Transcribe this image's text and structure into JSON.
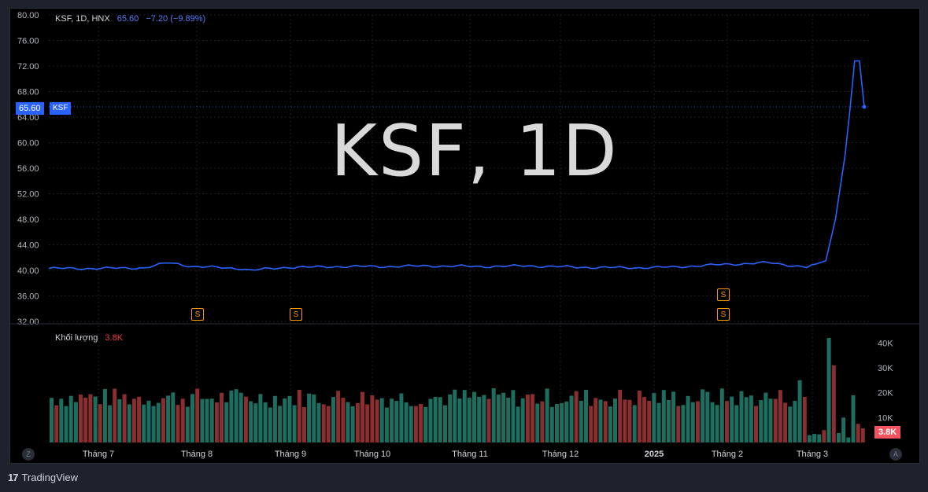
{
  "legend": {
    "symbol": "KSF, 1D, HNX",
    "last": "65.60",
    "change": "−7.20 (−9.89%)"
  },
  "volume_legend": {
    "label": "Khối lượng",
    "value": "3.8K"
  },
  "watermark": "KSF, 1D",
  "price_tag": {
    "value": "65.60",
    "ticker": "KSF"
  },
  "volume_tag": "3.8K",
  "markers": [
    "S",
    "S",
    "S",
    "S"
  ],
  "buttons": {
    "left": "Z",
    "right": "A"
  },
  "brand": {
    "logo": "17",
    "name": "TradingView"
  },
  "colors": {
    "line": "#2962ff",
    "up": "#26a69a",
    "down": "#ef5350",
    "up_dim": "#1e6e5f",
    "down_dim": "#8b2e30"
  },
  "chart_data": {
    "type": "line",
    "series": [
      {
        "name": "KSF",
        "type": "line",
        "x_index": [
          0,
          10,
          20,
          25,
          27,
          30,
          40,
          42,
          50,
          55,
          60,
          70,
          80,
          90,
          100,
          110,
          120,
          130,
          140,
          150,
          158,
          162,
          164,
          166,
          167,
          168,
          169,
          170
        ],
        "values": [
          40.3,
          40.3,
          40.4,
          41.2,
          41.0,
          40.6,
          40.3,
          40.0,
          40.5,
          40.5,
          40.6,
          40.6,
          40.7,
          40.6,
          40.7,
          40.5,
          40.4,
          40.5,
          40.9,
          41.2,
          40.5,
          41.5,
          48.0,
          58.0,
          65.0,
          72.8,
          72.8,
          65.6
        ]
      }
    ],
    "y_axis": {
      "ticks": [
        "80.00",
        "76.00",
        "72.00",
        "68.00",
        "64.00",
        "60.00",
        "56.00",
        "52.00",
        "48.00",
        "44.00",
        "40.00",
        "36.00",
        "32.00"
      ],
      "ylim": [
        32,
        80
      ]
    },
    "x_axis": {
      "ticks": [
        "Tháng 7",
        "Tháng 8",
        "Tháng 9",
        "Tháng 10",
        "Tháng 11",
        "Tháng 12",
        "2025",
        "Tháng 2",
        "Tháng 3"
      ]
    },
    "volume": {
      "ticks": [
        "40K",
        "30K",
        "20K",
        "10K"
      ],
      "ylim": [
        0,
        42000
      ],
      "last": 3800
    }
  }
}
